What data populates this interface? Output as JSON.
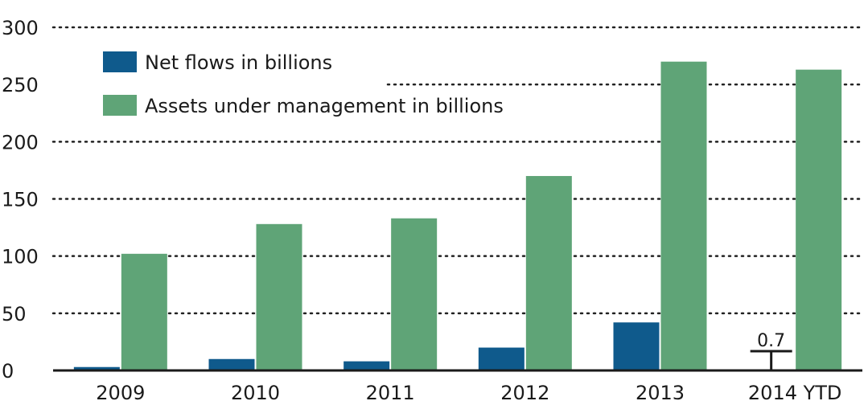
{
  "chart_data": {
    "type": "bar",
    "categories": [
      "2009",
      "2010",
      "2011",
      "2012",
      "2013",
      "2014 YTD"
    ],
    "series": [
      {
        "name": "Net flows in billions",
        "values": [
          3,
          10,
          8,
          20,
          42,
          0.7
        ],
        "color": "#0f5a8c"
      },
      {
        "name": "Assets under management in billions",
        "values": [
          102,
          128,
          133,
          170,
          270,
          263
        ],
        "color": "#5fa477"
      }
    ],
    "ylim": [
      0,
      300
    ],
    "yticks": [
      0,
      50,
      100,
      150,
      200,
      250,
      300
    ],
    "grid": true,
    "legend_placement": "top-left",
    "annotations": [
      {
        "category": "2014 YTD",
        "series": "Net flows in billions",
        "text": "0.7"
      }
    ],
    "title": "",
    "xlabel": "",
    "ylabel": ""
  }
}
